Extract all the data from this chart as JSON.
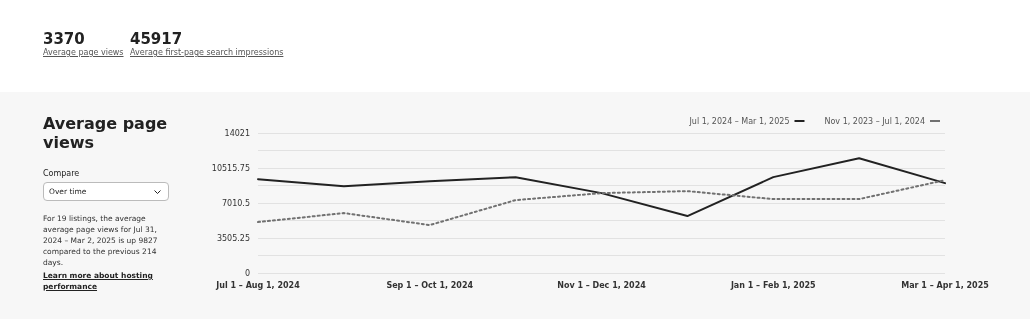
{
  "chart_data": {
    "type": "line",
    "title": "Average page views",
    "annotations": [
      "3370",
      "Average page views",
      "45917",
      "Average first-page search impressions",
      "Compare",
      "Over time",
      "For 19 listings, the average average page views for Jul 31, 2024 – Mar 2, 2025 is up 9827 compared to the previous 214 days.",
      "Learn more about hosting performance"
    ],
    "categories": [
      "Jul 1 – Aug 1, 2024",
      null,
      "Sep 1 – Oct 1, 2024",
      null,
      "Nov 1 – Dec 1, 2024",
      null,
      "Jan 1 – Feb 1, 2025",
      null,
      "Mar 1 – Apr 1, 2025"
    ],
    "series": [
      {
        "name": "Jul 1, 2024 – Mar 1, 2025",
        "color": "#222222",
        "line_style": "solid",
        "values": [
          9400,
          8700,
          9200,
          9600,
          8000,
          5700,
          9600,
          11500,
          9000
        ]
      },
      {
        "name": "Nov 1, 2023 – Jul 1, 2024",
        "color": "#717171",
        "line_style": "dotted",
        "values": [
          5100,
          6000,
          4800,
          7300,
          8000,
          8200,
          7400,
          7400,
          9300
        ]
      }
    ],
    "ylim": [
      0,
      14021
    ],
    "yticks": [
      0,
      {
        "value": 1752.625,
        "label": null
      },
      3505.25,
      {
        "value": 5257.875,
        "label": null
      },
      7010.5,
      {
        "value": 8763.125,
        "label": null
      },
      10515.75,
      {
        "value": 12268.375,
        "label": null
      },
      14021
    ],
    "grid": "y",
    "legend": "top right",
    "marker": "none"
  }
}
